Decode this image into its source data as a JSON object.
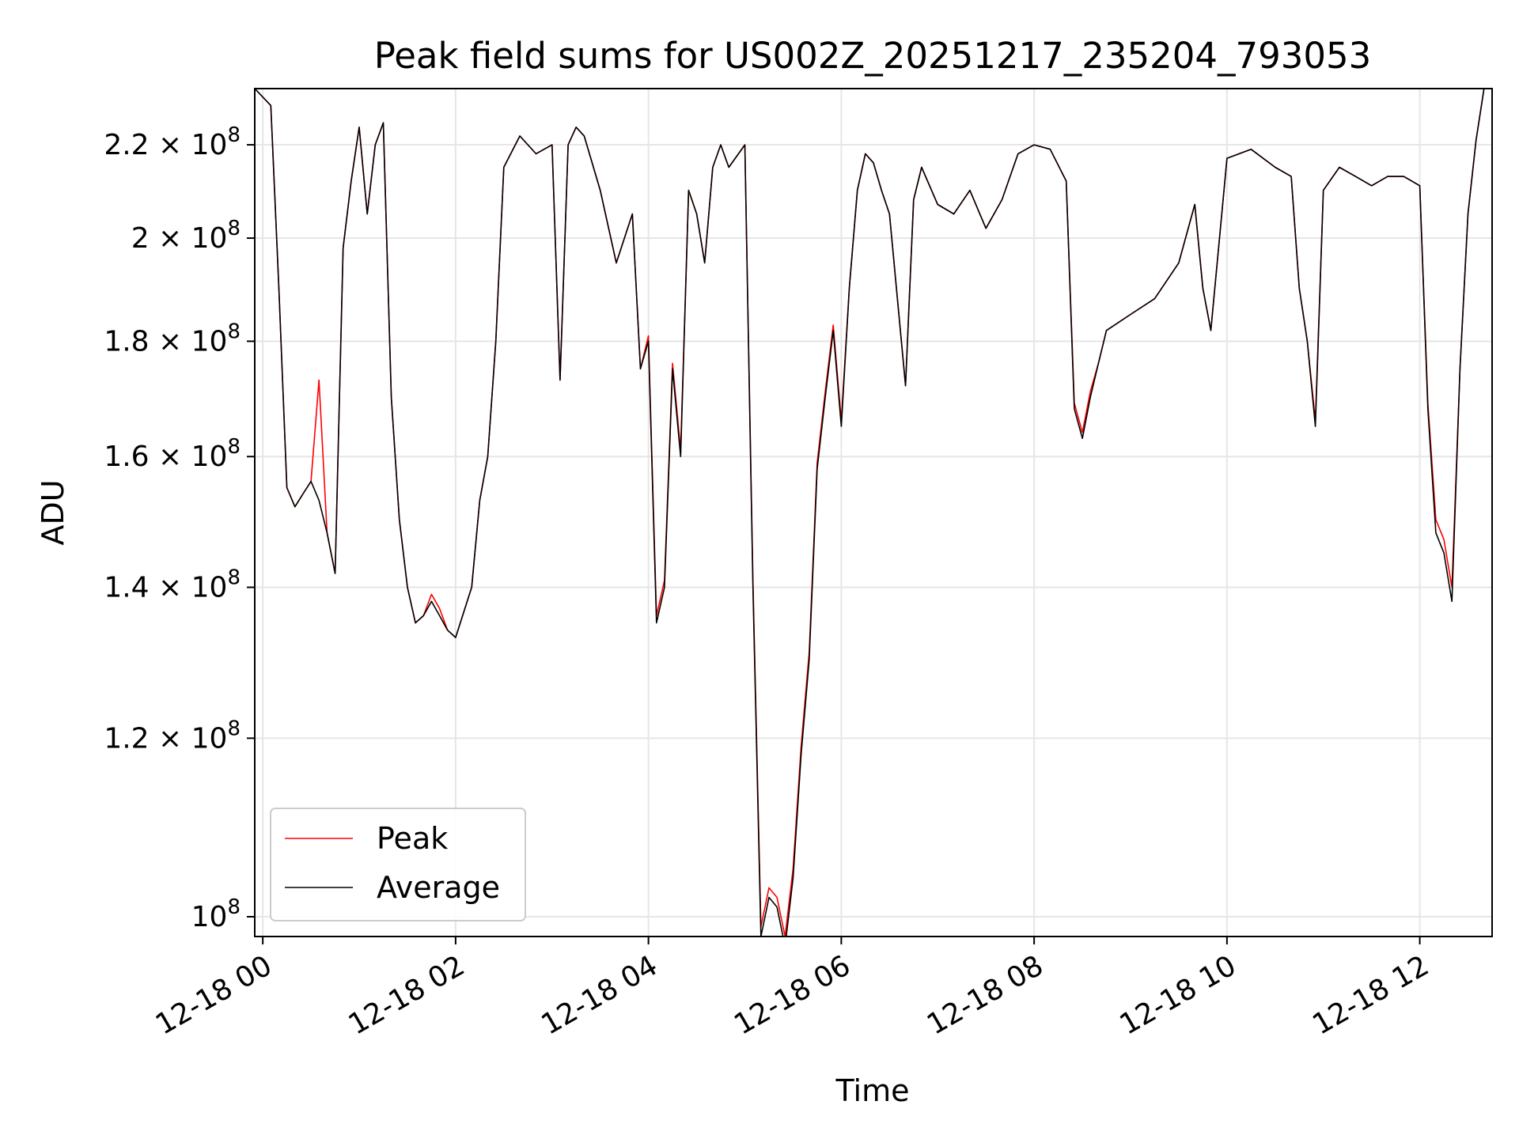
{
  "chart_data": {
    "type": "line",
    "title": "Peak field sums for US002Z_20251217_235204_793053",
    "xlabel": "Time",
    "ylabel": "ADU",
    "x_unit": "datetime",
    "xlim": [
      "2025-12-17T23:55",
      "2025-12-18T12:45"
    ],
    "ylim": [
      98000000,
      233000000
    ],
    "yscale": "log",
    "grid": true,
    "legend_position": "lower left",
    "x_ticks": [
      "12-18 00",
      "12-18 02",
      "12-18 04",
      "12-18 06",
      "12-18 08",
      "12-18 10",
      "12-18 12"
    ],
    "x_tick_times": [
      "2025-12-18T00:00",
      "2025-12-18T02:00",
      "2025-12-18T04:00",
      "2025-12-18T06:00",
      "2025-12-18T08:00",
      "2025-12-18T10:00",
      "2025-12-18T12:00"
    ],
    "y_ticks": [
      {
        "value": 100000000,
        "mantissa": "",
        "exp": "8"
      },
      {
        "value": 120000000,
        "mantissa": "1.2",
        "exp": "8"
      },
      {
        "value": 140000000,
        "mantissa": "1.4",
        "exp": "8"
      },
      {
        "value": 160000000,
        "mantissa": "1.6",
        "exp": "8"
      },
      {
        "value": 180000000,
        "mantissa": "1.8",
        "exp": "8"
      },
      {
        "value": 200000000,
        "mantissa": "2",
        "exp": "8"
      },
      {
        "value": 220000000,
        "mantissa": "2.2",
        "exp": "8"
      }
    ],
    "series": [
      {
        "name": "Peak",
        "color": "#ff0000"
      },
      {
        "name": "Average",
        "color": "#000000"
      }
    ],
    "x": [
      "2025-12-17T23:55",
      "2025-12-18T00:05",
      "2025-12-18T00:10",
      "2025-12-18T00:15",
      "2025-12-18T00:20",
      "2025-12-18T00:25",
      "2025-12-18T00:30",
      "2025-12-18T00:35",
      "2025-12-18T00:40",
      "2025-12-18T00:45",
      "2025-12-18T00:50",
      "2025-12-18T00:55",
      "2025-12-18T01:00",
      "2025-12-18T01:05",
      "2025-12-18T01:10",
      "2025-12-18T01:15",
      "2025-12-18T01:20",
      "2025-12-18T01:25",
      "2025-12-18T01:30",
      "2025-12-18T01:35",
      "2025-12-18T01:40",
      "2025-12-18T01:45",
      "2025-12-18T01:50",
      "2025-12-18T01:55",
      "2025-12-18T02:00",
      "2025-12-18T02:10",
      "2025-12-18T02:15",
      "2025-12-18T02:20",
      "2025-12-18T02:25",
      "2025-12-18T02:30",
      "2025-12-18T02:40",
      "2025-12-18T02:50",
      "2025-12-18T03:00",
      "2025-12-18T03:05",
      "2025-12-18T03:10",
      "2025-12-18T03:15",
      "2025-12-18T03:20",
      "2025-12-18T03:30",
      "2025-12-18T03:40",
      "2025-12-18T03:50",
      "2025-12-18T03:55",
      "2025-12-18T04:00",
      "2025-12-18T04:05",
      "2025-12-18T04:10",
      "2025-12-18T04:15",
      "2025-12-18T04:20",
      "2025-12-18T04:25",
      "2025-12-18T04:30",
      "2025-12-18T04:35",
      "2025-12-18T04:40",
      "2025-12-18T04:45",
      "2025-12-18T04:50",
      "2025-12-18T05:00",
      "2025-12-18T05:05",
      "2025-12-18T05:10",
      "2025-12-18T05:15",
      "2025-12-18T05:20",
      "2025-12-18T05:25",
      "2025-12-18T05:30",
      "2025-12-18T05:35",
      "2025-12-18T05:40",
      "2025-12-18T05:45",
      "2025-12-18T05:50",
      "2025-12-18T05:55",
      "2025-12-18T06:00",
      "2025-12-18T06:05",
      "2025-12-18T06:10",
      "2025-12-18T06:15",
      "2025-12-18T06:20",
      "2025-12-18T06:25",
      "2025-12-18T06:30",
      "2025-12-18T06:40",
      "2025-12-18T06:45",
      "2025-12-18T06:50",
      "2025-12-18T07:00",
      "2025-12-18T07:10",
      "2025-12-18T07:20",
      "2025-12-18T07:30",
      "2025-12-18T07:40",
      "2025-12-18T07:50",
      "2025-12-18T08:00",
      "2025-12-18T08:10",
      "2025-12-18T08:20",
      "2025-12-18T08:25",
      "2025-12-18T08:30",
      "2025-12-18T08:35",
      "2025-12-18T08:40",
      "2025-12-18T08:45",
      "2025-12-18T09:00",
      "2025-12-18T09:15",
      "2025-12-18T09:30",
      "2025-12-18T09:40",
      "2025-12-18T09:45",
      "2025-12-18T09:50",
      "2025-12-18T10:00",
      "2025-12-18T10:15",
      "2025-12-18T10:30",
      "2025-12-18T10:40",
      "2025-12-18T10:45",
      "2025-12-18T10:50",
      "2025-12-18T10:55",
      "2025-12-18T11:00",
      "2025-12-18T11:10",
      "2025-12-18T11:20",
      "2025-12-18T11:30",
      "2025-12-18T11:40",
      "2025-12-18T11:50",
      "2025-12-18T12:00",
      "2025-12-18T12:05",
      "2025-12-18T12:10",
      "2025-12-18T12:15",
      "2025-12-18T12:20",
      "2025-12-18T12:25",
      "2025-12-18T12:30",
      "2025-12-18T12:35",
      "2025-12-18T12:40",
      "2025-12-18T12:45"
    ],
    "average": [
      233000000,
      229000000,
      190000000,
      155000000,
      152000000,
      154000000,
      156000000,
      153000000,
      148000000,
      142000000,
      198000000,
      212000000,
      224000000,
      205000000,
      220000000,
      225000000,
      170000000,
      150000000,
      140000000,
      135000000,
      136000000,
      138000000,
      136000000,
      134000000,
      133000000,
      140000000,
      153000000,
      160000000,
      180000000,
      215000000,
      222000000,
      218000000,
      220000000,
      173000000,
      220000000,
      224000000,
      222000000,
      210000000,
      195000000,
      205000000,
      175000000,
      180000000,
      135000000,
      140000000,
      175000000,
      160000000,
      210000000,
      205000000,
      195000000,
      215000000,
      220000000,
      215000000,
      220000000,
      140000000,
      98000000,
      102000000,
      101000000,
      97000000,
      104000000,
      118000000,
      130000000,
      158000000,
      170000000,
      182000000,
      165000000,
      190000000,
      210000000,
      218000000,
      216000000,
      210000000,
      205000000,
      172000000,
      208000000,
      215000000,
      207000000,
      205000000,
      210000000,
      202000000,
      208000000,
      218000000,
      220000000,
      219000000,
      212000000,
      168000000,
      163000000,
      170000000,
      176000000,
      182000000,
      185000000,
      188000000,
      195000000,
      207000000,
      190000000,
      182000000,
      217000000,
      219000000,
      215000000,
      213000000,
      190000000,
      180000000,
      165000000,
      210000000,
      215000000,
      213000000,
      211000000,
      213000000,
      213000000,
      211000000,
      168000000,
      148000000,
      145000000,
      138000000,
      175000000,
      205000000,
      221000000,
      233000000
    ],
    "peak": [
      233000000,
      229000000,
      190000000,
      155000000,
      152000000,
      154000000,
      156000000,
      173000000,
      148000000,
      142000000,
      198000000,
      212000000,
      224000000,
      205000000,
      220000000,
      225000000,
      170000000,
      150000000,
      140000000,
      135000000,
      136000000,
      139000000,
      137000000,
      134000000,
      133000000,
      140000000,
      153000000,
      160000000,
      180000000,
      215000000,
      222000000,
      218000000,
      220000000,
      173000000,
      220000000,
      224000000,
      222000000,
      210000000,
      195000000,
      205000000,
      175000000,
      181000000,
      136000000,
      141000000,
      176000000,
      161000000,
      210000000,
      205000000,
      195000000,
      215000000,
      220000000,
      215000000,
      220000000,
      141000000,
      99000000,
      103000000,
      102000000,
      98000000,
      105000000,
      119000000,
      131000000,
      159000000,
      171000000,
      183000000,
      166000000,
      190000000,
      210000000,
      218000000,
      216000000,
      210000000,
      205000000,
      172000000,
      208000000,
      215000000,
      207000000,
      205000000,
      210000000,
      202000000,
      208000000,
      218000000,
      220000000,
      219000000,
      212000000,
      169000000,
      164000000,
      171000000,
      176000000,
      182000000,
      185000000,
      188000000,
      195000000,
      207000000,
      190000000,
      182000000,
      217000000,
      219000000,
      215000000,
      213000000,
      190000000,
      180000000,
      166000000,
      210000000,
      215000000,
      213000000,
      211000000,
      213000000,
      213000000,
      211000000,
      169000000,
      150000000,
      147000000,
      140000000,
      175000000,
      205000000,
      221000000,
      233000000
    ]
  }
}
